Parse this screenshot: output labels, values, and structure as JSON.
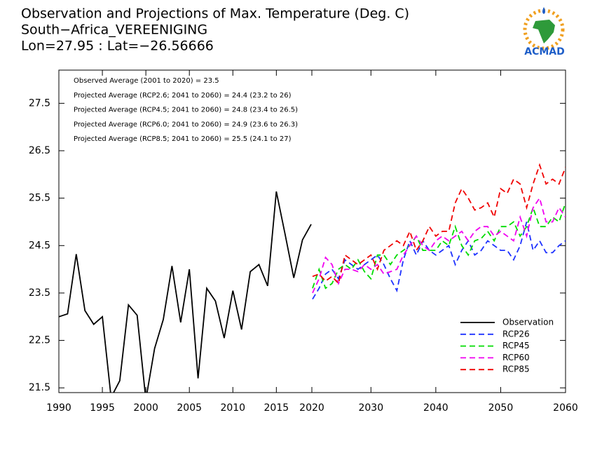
{
  "chart_data": {
    "type": "line",
    "title_lines": [
      "Observation and Projections of Max. Temperature (Deg. C)",
      "South−Africa_VEREENIGING",
      "Lon=27.95 : Lat=−26.56666"
    ],
    "annotations": [
      "Observed Average (2001 to 2020) = 23.5",
      "Projected Average (RCP2.6; 2041 to 2060) = 24.4 (23.2 to 26)",
      "Projected Average (RCP4.5; 2041 to 2060) = 24.8 (23.4 to 26.5)",
      "Projected Average (RCP6.0; 2041 to 2060) = 24.9 (23.6 to 26.3)",
      "Projected Average (RCP8.5; 2041 to 2060) = 25.5 (24.1 to 27)"
    ],
    "xlim": [
      1990,
      2060
    ],
    "xticks": [
      1990,
      1995,
      2000,
      2005,
      2010,
      2015,
      2020,
      2030,
      2040,
      2050,
      2060
    ],
    "ylim": [
      21.4,
      28.2
    ],
    "yticks": [
      21.5,
      22.5,
      23.5,
      24.5,
      25.5,
      26.5,
      27.5
    ],
    "legend": "lower right",
    "series": [
      {
        "name": "Observation",
        "color": "#000000",
        "dash": false,
        "x": [
          1990,
          1991,
          1992,
          1993,
          1994,
          1995,
          1996,
          1997,
          1998,
          1999,
          2000,
          2001,
          2002,
          2003,
          2004,
          2005,
          2006,
          2007,
          2008,
          2009,
          2010,
          2011,
          2012,
          2013,
          2014,
          2015,
          2016,
          2017,
          2018,
          2019
        ],
        "values": [
          23.0,
          23.06,
          24.32,
          23.13,
          22.84,
          23.0,
          21.3,
          21.65,
          23.25,
          23.03,
          21.25,
          22.33,
          22.94,
          24.07,
          22.88,
          24.0,
          21.7,
          23.6,
          23.33,
          22.55,
          23.55,
          22.73,
          23.95,
          24.1,
          23.65,
          25.64,
          24.74,
          23.82,
          24.62,
          24.95
        ]
      },
      {
        "name": "RCP26",
        "color": "#1e32ff",
        "dash": true,
        "x": [
          2021,
          2022,
          2023,
          2024,
          2025,
          2026,
          2027,
          2028,
          2029,
          2030,
          2031,
          2032,
          2033,
          2034,
          2035,
          2036,
          2037,
          2038,
          2039,
          2040,
          2041,
          2042,
          2043,
          2044,
          2045,
          2046,
          2047,
          2048,
          2049,
          2050,
          2051,
          2052,
          2053,
          2054,
          2055,
          2056,
          2057,
          2058,
          2059,
          2060
        ],
        "values": [
          23.37,
          23.6,
          23.9,
          24.0,
          23.8,
          24.2,
          24.1,
          24.0,
          24.1,
          24.2,
          24.3,
          24.1,
          23.8,
          23.55,
          24.2,
          24.6,
          24.3,
          24.6,
          24.4,
          24.3,
          24.4,
          24.5,
          24.1,
          24.4,
          24.6,
          24.3,
          24.4,
          24.6,
          24.5,
          24.4,
          24.4,
          24.2,
          24.5,
          25.0,
          24.4,
          24.6,
          24.35,
          24.35,
          24.5,
          24.6
        ]
      },
      {
        "name": "RCP45",
        "color": "#00dc00",
        "dash": true,
        "x": [
          2021,
          2022,
          2023,
          2024,
          2025,
          2026,
          2027,
          2028,
          2029,
          2030,
          2031,
          2032,
          2033,
          2034,
          2035,
          2036,
          2037,
          2038,
          2039,
          2040,
          2041,
          2042,
          2043,
          2044,
          2045,
          2046,
          2047,
          2048,
          2049,
          2050,
          2051,
          2052,
          2053,
          2054,
          2055,
          2056,
          2057,
          2058,
          2059,
          2060
        ],
        "values": [
          23.6,
          24.0,
          23.6,
          23.7,
          24.0,
          24.1,
          24.0,
          24.2,
          23.95,
          23.8,
          24.3,
          24.3,
          24.1,
          24.3,
          24.4,
          24.5,
          24.7,
          24.4,
          24.4,
          24.4,
          24.6,
          24.5,
          24.9,
          24.5,
          24.3,
          24.6,
          24.65,
          24.8,
          24.6,
          24.9,
          24.9,
          25.0,
          24.7,
          24.9,
          25.3,
          24.9,
          24.9,
          25.1,
          25.0,
          25.4
        ]
      },
      {
        "name": "RCP60",
        "color": "#f000f0",
        "dash": true,
        "x": [
          2021,
          2022,
          2023,
          2024,
          2025,
          2026,
          2027,
          2028,
          2029,
          2030,
          2031,
          2032,
          2033,
          2034,
          2035,
          2036,
          2037,
          2038,
          2039,
          2040,
          2041,
          2042,
          2043,
          2044,
          2045,
          2046,
          2047,
          2048,
          2049,
          2050,
          2051,
          2052,
          2053,
          2054,
          2055,
          2056,
          2057,
          2058,
          2059,
          2060
        ],
        "values": [
          23.5,
          23.8,
          24.25,
          24.1,
          23.7,
          24.0,
          24.0,
          23.95,
          24.1,
          24.0,
          24.1,
          23.9,
          23.95,
          24.0,
          24.3,
          24.5,
          24.7,
          24.5,
          24.4,
          24.6,
          24.7,
          24.6,
          24.7,
          24.8,
          24.6,
          24.8,
          24.9,
          24.9,
          24.7,
          24.8,
          24.7,
          24.6,
          25.1,
          24.7,
          25.3,
          25.5,
          25.0,
          25.0,
          25.3,
          25.1
        ]
      },
      {
        "name": "RCP85",
        "color": "#f00000",
        "dash": true,
        "x": [
          2021,
          2022,
          2023,
          2024,
          2025,
          2026,
          2027,
          2028,
          2029,
          2030,
          2031,
          2032,
          2033,
          2034,
          2035,
          2036,
          2037,
          2038,
          2039,
          2040,
          2041,
          2042,
          2043,
          2044,
          2045,
          2046,
          2047,
          2048,
          2049,
          2050,
          2051,
          2052,
          2053,
          2054,
          2055,
          2056,
          2057,
          2058,
          2059,
          2060
        ],
        "values": [
          23.85,
          23.9,
          23.75,
          23.85,
          23.7,
          24.3,
          24.2,
          24.1,
          24.2,
          24.3,
          24.0,
          24.4,
          24.5,
          24.6,
          24.5,
          24.8,
          24.4,
          24.6,
          24.9,
          24.7,
          24.8,
          24.8,
          25.4,
          25.7,
          25.5,
          25.25,
          25.3,
          25.4,
          25.1,
          25.7,
          25.6,
          25.9,
          25.8,
          25.3,
          25.8,
          26.2,
          25.8,
          25.9,
          25.8,
          26.15
        ]
      }
    ]
  },
  "logo_text": "ACMAD"
}
